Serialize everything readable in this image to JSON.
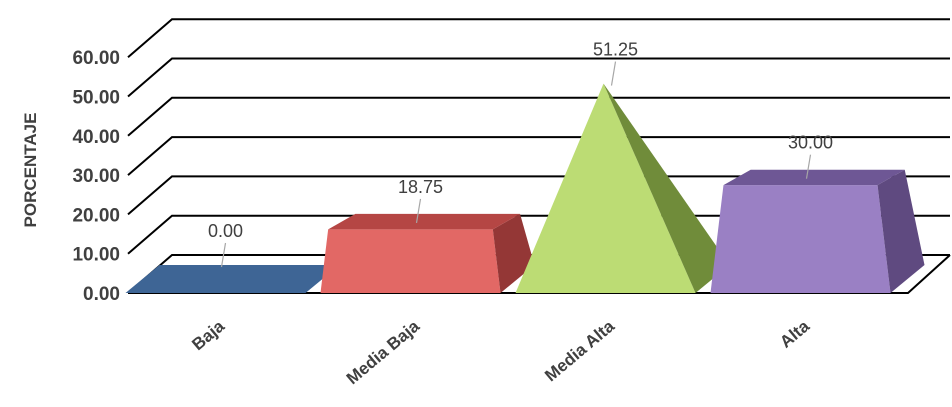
{
  "chart_data": {
    "type": "bar",
    "shape": "3d-pyramid-truncated",
    "categories": [
      "Baja",
      "Media Baja",
      "Media Alta",
      "Alta"
    ],
    "values": [
      0.0,
      18.75,
      51.25,
      30.0
    ],
    "value_labels": [
      "0.00",
      "18.75",
      "51.25",
      "30.00"
    ],
    "ylabel": "PORCENTAJE",
    "ylim": [
      0,
      60
    ],
    "yticks": [
      "0.00",
      "10.00",
      "20.00",
      "30.00",
      "40.00",
      "50.00",
      "60.00"
    ],
    "grid": true,
    "legend": "none",
    "colors": {
      "Baja": {
        "front": "#3e6595",
        "side": "#2b4a70",
        "top": "#567fb0"
      },
      "Media Baja": {
        "front": "#e26865",
        "side": "#943736",
        "top": "#b54644"
      },
      "Media Alta": {
        "front": "#bcdc74",
        "side": "#708c3a",
        "top": "#d2ea9a"
      },
      "Alta": {
        "front": "#9a80c4",
        "side": "#5f4a80",
        "top": "#6e5795"
      }
    }
  }
}
